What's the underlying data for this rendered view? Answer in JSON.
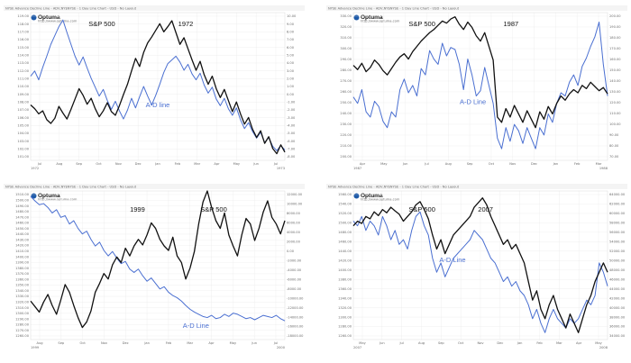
{
  "colors": {
    "price": "#111111",
    "ad": "#4a6fd1",
    "grid": "#e6e6e6",
    "logo": "#1e5aa8"
  },
  "chart_data": [
    {
      "type": "line",
      "header": "NYSE  Advance Decline Line - ADV,NY$NYSE - 1 Day Line Chart - USD - No Layout",
      "logo": "Optuma",
      "logo_sub": "http://www.optuma.com",
      "year_label": "1972",
      "price_label": "S&P 500",
      "ad_label": "A-D line",
      "left_ticks": [
        "119.00",
        "118.00",
        "117.00",
        "116.00",
        "115.00",
        "114.00",
        "113.00",
        "112.00",
        "111.00",
        "110.00",
        "109.00",
        "108.00",
        "107.00",
        "106.00",
        "105.00",
        "104.00",
        "103.00",
        "102.00",
        "101.00"
      ],
      "right_ticks": [
        "10.00",
        "9.00",
        "8.00",
        "7.00",
        "6.00",
        "5.00",
        "4.00",
        "3.00",
        "2.00",
        "1.00",
        "0.00",
        "-1.00",
        "-2.00",
        "-3.00",
        "-4.00",
        "-5.00",
        "-6.00",
        "-7.00",
        "-8.00"
      ],
      "x_labels": [
        "Jul",
        "Aug",
        "Sep",
        "Oct",
        "Nov",
        "Dec",
        "Jan",
        "Feb",
        "Mar",
        "Apr",
        "May",
        "Jun",
        "Jul"
      ],
      "x_year_left": "1972",
      "x_year_right": "1973",
      "ylim_price": [
        100.5,
        120.5
      ],
      "price": [
        108.0,
        107.5,
        106.8,
        107.2,
        106.0,
        105.5,
        106.2,
        107.8,
        106.9,
        106.1,
        107.4,
        108.8,
        110.2,
        109.3,
        108.1,
        108.9,
        107.5,
        106.4,
        107.2,
        108.3,
        107.1,
        106.6,
        107.9,
        109.4,
        110.8,
        112.6,
        114.3,
        113.2,
        115.1,
        116.4,
        117.2,
        118.1,
        119.0,
        117.9,
        118.6,
        119.4,
        117.8,
        116.2,
        117.1,
        115.6,
        114.1,
        112.7,
        113.9,
        112.1,
        110.8,
        111.9,
        110.2,
        109.0,
        110.1,
        108.6,
        107.1,
        108.4,
        106.8,
        105.4,
        106.3,
        104.7,
        103.6,
        104.5,
        102.8,
        103.7,
        102.1,
        101.4,
        102.6,
        101.6
      ],
      "ad": [
        111.9,
        112.6,
        111.4,
        113.1,
        114.6,
        116.2,
        117.4,
        118.6,
        119.5,
        117.8,
        116.2,
        114.6,
        113.4,
        114.5,
        113.0,
        111.6,
        110.4,
        109.2,
        110.1,
        108.6,
        107.4,
        108.5,
        107.2,
        106.1,
        107.3,
        108.9,
        107.6,
        109.1,
        110.5,
        109.2,
        108.0,
        109.3,
        110.8,
        112.4,
        113.6,
        114.1,
        114.6,
        113.8,
        112.7,
        113.5,
        112.2,
        111.4,
        112.3,
        110.7,
        109.6,
        110.4,
        108.8,
        107.9,
        108.9,
        107.5,
        106.6,
        107.6,
        106.0,
        104.8,
        105.6,
        104.4,
        103.5,
        104.3,
        102.9,
        103.6,
        102.4,
        101.8,
        102.5,
        101.9
      ]
    },
    {
      "type": "line",
      "header": "NYSE  Advance Decline Line - ADV,NY$NYSE - 1 Day Line Chart - USD - No Layout",
      "logo": "Optuma",
      "logo_sub": "http://www.optuma.com",
      "year_label": "1987",
      "price_label": "S&P 500",
      "ad_label": "A-D Line",
      "left_ticks": [
        "330.00",
        "320.00",
        "310.00",
        "300.00",
        "290.00",
        "280.00",
        "270.00",
        "260.00",
        "250.00",
        "240.00",
        "230.00",
        "220.00",
        "210.00",
        "200.00"
      ],
      "right_ticks": [
        "200.00",
        "190.00",
        "180.00",
        "170.00",
        "160.00",
        "150.00",
        "140.00",
        "130.00",
        "120.00",
        "110.00",
        "100.00",
        "90.00",
        "80.00",
        "70.00"
      ],
      "x_labels": [
        "Apr",
        "May",
        "Jun",
        "Jul",
        "Aug",
        "Sep",
        "Oct",
        "Nov",
        "Dec",
        "Jan",
        "Feb",
        "Mar"
      ],
      "x_year_left": "1987",
      "x_year_right": "1988",
      "ylim_price": [
        195,
        335
      ],
      "price": [
        285,
        281,
        287,
        279,
        283,
        290,
        286,
        280,
        276,
        282,
        288,
        293,
        296,
        291,
        298,
        303,
        308,
        312,
        316,
        319,
        323,
        327,
        325,
        329,
        331,
        324,
        319,
        326,
        321,
        313,
        308,
        316,
        303,
        290,
        236,
        231,
        244,
        236,
        247,
        239,
        231,
        242,
        234,
        226,
        241,
        234,
        246,
        239,
        249,
        256,
        252,
        258,
        262,
        259,
        266,
        263,
        269,
        265,
        261,
        264,
        258
      ],
      "ad": [
        255,
        249,
        262,
        241,
        236,
        251,
        246,
        232,
        226,
        241,
        236,
        262,
        272,
        259,
        266,
        256,
        282,
        276,
        299,
        291,
        286,
        306,
        294,
        302,
        300,
        286,
        262,
        291,
        276,
        256,
        261,
        283,
        266,
        249,
        216,
        206,
        226,
        213,
        229,
        223,
        211,
        226,
        216,
        206,
        226,
        219,
        239,
        231,
        249,
        259,
        256,
        269,
        276,
        266,
        284,
        292,
        303,
        312,
        326,
        286,
        256
      ]
    },
    {
      "type": "line",
      "header": "NYSE  Advance Decline Line - ADV,NY$NYSE - 1 Day Line Chart - USD - No Layout",
      "logo": "Optuma",
      "logo_sub": "http://www.optuma.com",
      "year_label": "1999",
      "price_label": "S&P 500",
      "ad_label": "A-D Line",
      "left_ticks": [
        "1510.00",
        "1500.00",
        "1490.00",
        "1480.00",
        "1470.00",
        "1460.00",
        "1450.00",
        "1440.00",
        "1430.00",
        "1420.00",
        "1410.00",
        "1400.00",
        "1390.00",
        "1380.00",
        "1370.00",
        "1360.00",
        "1350.00",
        "1340.00",
        "1330.00",
        "1320.00",
        "1310.00",
        "1300.00",
        "1290.00",
        "1280.00",
        "1270.00",
        "1260.00"
      ],
      "right_ticks": [
        "12000.00",
        "10000.00",
        "8000.00",
        "6000.00",
        "4000.00",
        "2000.00",
        "0.00",
        "-2000.00",
        "-4000.00",
        "-6000.00",
        "-8000.00",
        "-10000.00",
        "-12000.00",
        "-14000.00",
        "-16000.00",
        "-18000.00"
      ],
      "x_labels": [
        "Aug",
        "Sep",
        "Oct",
        "Nov",
        "Dec",
        "Jan",
        "Feb",
        "Mar",
        "Apr",
        "May",
        "Jun",
        "Jul"
      ],
      "x_year_left": "1999",
      "x_year_right": "2000",
      "ylim_price": [
        1250,
        1520
      ],
      "price": [
        1320,
        1310,
        1300,
        1318,
        1332,
        1312,
        1296,
        1322,
        1350,
        1336,
        1312,
        1290,
        1272,
        1282,
        1302,
        1336,
        1352,
        1370,
        1360,
        1386,
        1400,
        1390,
        1416,
        1402,
        1420,
        1432,
        1422,
        1440,
        1462,
        1452,
        1432,
        1420,
        1412,
        1436,
        1402,
        1390,
        1360,
        1380,
        1410,
        1460,
        1500,
        1520,
        1490,
        1466,
        1452,
        1480,
        1440,
        1420,
        1402,
        1440,
        1470,
        1460,
        1430,
        1452,
        1482,
        1502,
        1472,
        1460,
        1442,
        1466
      ],
      "ad": [
        1510,
        1502,
        1495,
        1497,
        1490,
        1480,
        1486,
        1472,
        1475,
        1460,
        1466,
        1452,
        1442,
        1447,
        1432,
        1420,
        1427,
        1412,
        1402,
        1410,
        1398,
        1388,
        1392,
        1378,
        1372,
        1378,
        1366,
        1356,
        1362,
        1352,
        1342,
        1346,
        1336,
        1330,
        1326,
        1320,
        1312,
        1305,
        1300,
        1296,
        1292,
        1290,
        1294,
        1288,
        1290,
        1296,
        1292,
        1298,
        1296,
        1292,
        1288,
        1290,
        1286,
        1290,
        1294,
        1292,
        1290,
        1294,
        1288,
        1284
      ]
    },
    {
      "type": "line",
      "header": "NYSE  Advance Decline Line - ADV,NY$NYSE - 1 Day Line Chart - USD - No Layout",
      "logo": "Optuma",
      "logo_sub": "http://www.optuma.com",
      "year_label": "2007",
      "price_label": "S&P 500",
      "ad_label": "A-D Line",
      "left_ticks": [
        "1560.00",
        "1540.00",
        "1520.00",
        "1500.00",
        "1480.00",
        "1460.00",
        "1440.00",
        "1420.00",
        "1400.00",
        "1380.00",
        "1360.00",
        "1340.00",
        "1320.00",
        "1300.00",
        "1280.00",
        "1260.00"
      ],
      "right_ticks": [
        "64000.00",
        "62000.00",
        "60000.00",
        "58000.00",
        "56000.00",
        "54000.00",
        "52000.00",
        "50000.00",
        "48000.00",
        "46000.00",
        "44000.00",
        "42000.00",
        "40000.00",
        "38000.00",
        "36000.00",
        "34000.00"
      ],
      "x_labels": [
        "May",
        "Jun",
        "Jul",
        "Aug",
        "Sep",
        "Oct",
        "Nov",
        "Dec",
        "Jan",
        "Feb",
        "Mar",
        "Apr",
        "May"
      ],
      "x_year_left": "2007",
      "x_year_right": "2008",
      "ylim_price": [
        1255,
        1575
      ],
      "price": [
        1500,
        1510,
        1505,
        1520,
        1515,
        1530,
        1522,
        1535,
        1528,
        1540,
        1532,
        1525,
        1510,
        1520,
        1530,
        1545,
        1552,
        1535,
        1515,
        1480,
        1450,
        1470,
        1440,
        1460,
        1480,
        1490,
        1500,
        1510,
        1520,
        1540,
        1550,
        1560,
        1545,
        1520,
        1500,
        1480,
        1460,
        1470,
        1450,
        1460,
        1440,
        1420,
        1380,
        1340,
        1360,
        1320,
        1300,
        1330,
        1350,
        1320,
        1300,
        1280,
        1310,
        1290,
        1270,
        1300,
        1330,
        1350,
        1380,
        1400,
        1420,
        1400
      ],
      "ad": [
        1510,
        1500,
        1520,
        1490,
        1510,
        1500,
        1480,
        1520,
        1500,
        1470,
        1490,
        1460,
        1470,
        1450,
        1490,
        1520,
        1530,
        1500,
        1480,
        1430,
        1400,
        1420,
        1390,
        1410,
        1430,
        1440,
        1450,
        1460,
        1470,
        1490,
        1480,
        1470,
        1450,
        1430,
        1420,
        1400,
        1380,
        1390,
        1370,
        1380,
        1360,
        1350,
        1330,
        1300,
        1320,
        1290,
        1270,
        1300,
        1320,
        1300,
        1290,
        1280,
        1300,
        1290,
        1300,
        1320,
        1340,
        1330,
        1350,
        1420,
        1400,
        1370
      ]
    }
  ]
}
